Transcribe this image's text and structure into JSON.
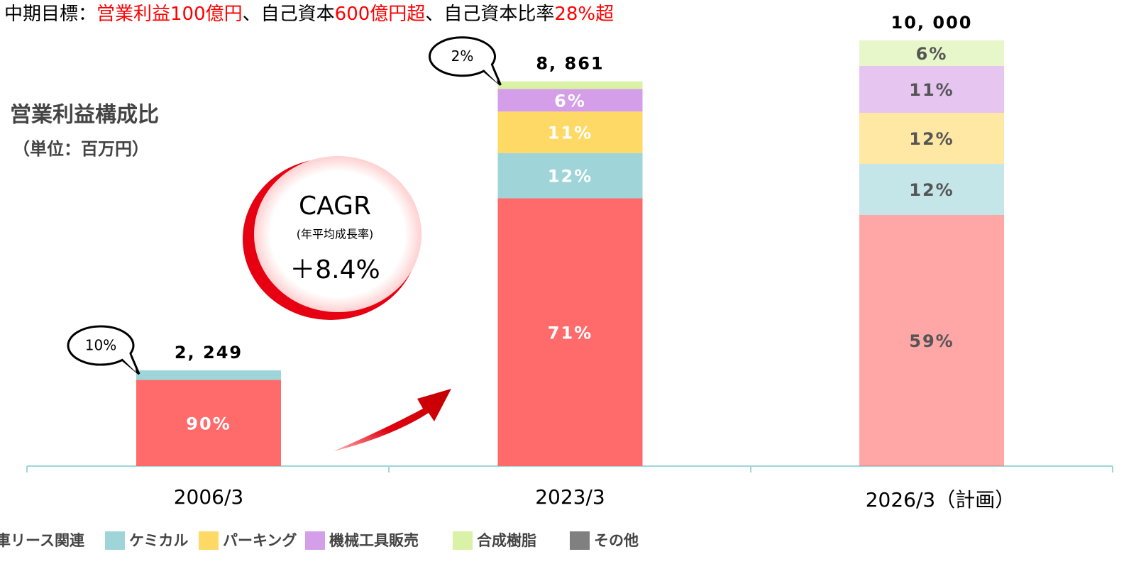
{
  "chart_data": {
    "type": "bar",
    "title_parts": [
      {
        "text": "中期目標：",
        "color": "#000000"
      },
      {
        "text": "営業利益100億円",
        "color": "#ff0000"
      },
      {
        "text": "、自己資本",
        "color": "#000000"
      },
      {
        "text": "600億円超",
        "color": "#ff0000"
      },
      {
        "text": "、自己資本比率",
        "color": "#000000"
      },
      {
        "text": "28%超",
        "color": "#ff0000"
      }
    ],
    "subtitle": "営業利益構成比",
    "unit": "（単位：百万円）",
    "annotation": {
      "title": "CAGR",
      "subtitle": "(年平均成長率)",
      "text": "＋8.4%"
    },
    "categories": [
      "2006/3",
      "2023/3",
      "2026/3（計画）"
    ],
    "totals": [
      2249,
      8861,
      10000
    ],
    "total_labels": [
      "2, 249",
      "8, 861",
      "10, 000"
    ],
    "series": [
      {
        "name": "車リース関連",
        "color": "#ff6b6b",
        "values": [
          90,
          71,
          59
        ],
        "value_labels": [
          "90%",
          "71%",
          "59%"
        ]
      },
      {
        "name": "ケミカル",
        "color": "#9fd5d9",
        "values": [
          10,
          12,
          12
        ],
        "value_labels": [
          "10%",
          "12%",
          "12%"
        ]
      },
      {
        "name": "パーキング",
        "color": "#ffd966",
        "values": [
          null,
          11,
          12
        ],
        "value_labels": [
          null,
          "11%",
          "12%"
        ]
      },
      {
        "name": "機械工具販売",
        "color": "#d59ee8",
        "values": [
          null,
          6,
          11
        ],
        "value_labels": [
          null,
          "6%",
          "11%"
        ]
      },
      {
        "name": "合成樹脂",
        "color": "#d9f2a6",
        "values": [
          null,
          2,
          6
        ],
        "value_labels": [
          null,
          "2%",
          "6%"
        ]
      },
      {
        "name": "その他",
        "color": "#808080",
        "values": [
          null,
          null,
          null
        ],
        "value_labels": [
          null,
          null,
          null
        ]
      }
    ]
  }
}
